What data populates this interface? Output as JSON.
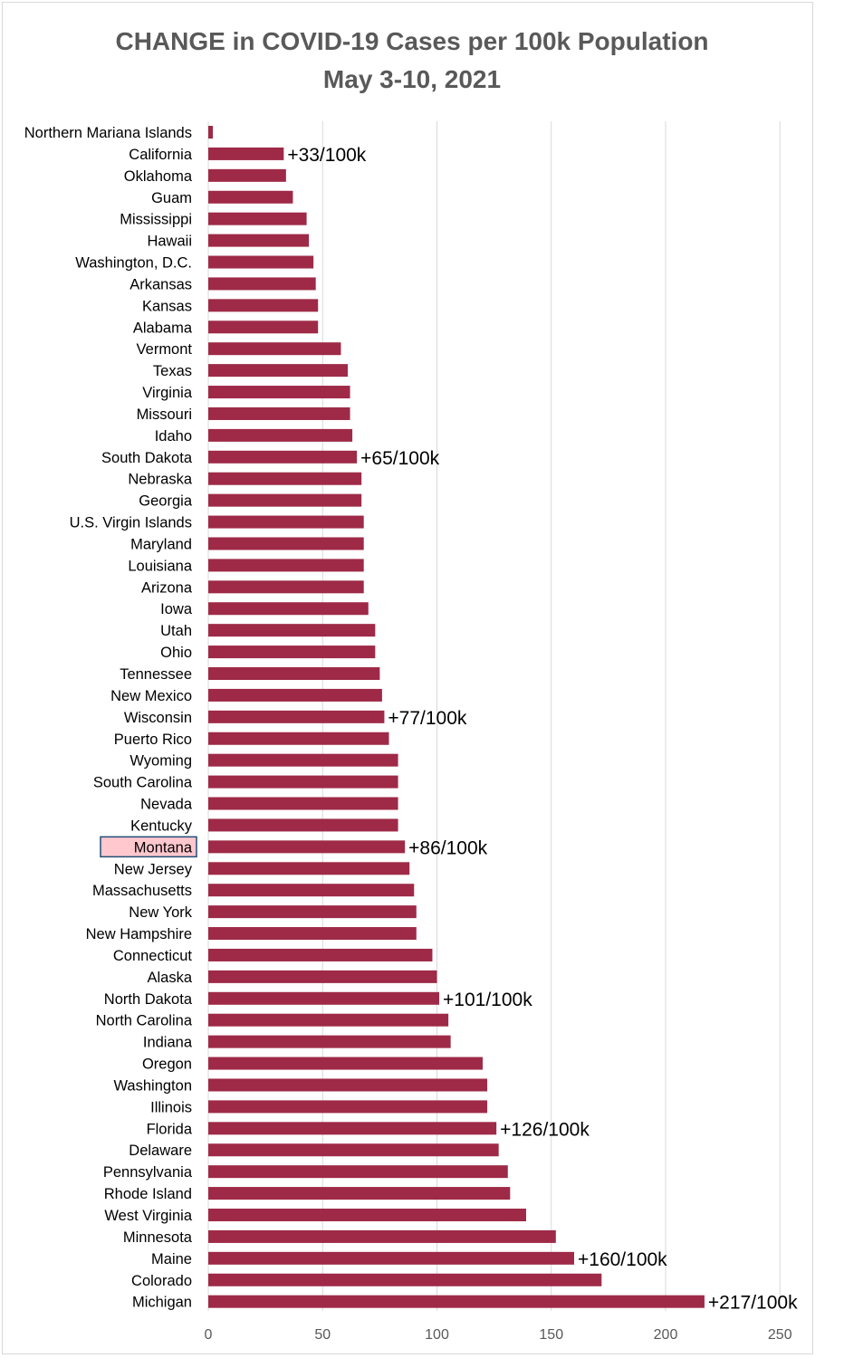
{
  "chart_data": {
    "type": "bar",
    "orientation": "horizontal",
    "title_lines": [
      "CHANGE in COVID-19 Cases per 100k Population",
      "May 3-10, 2021"
    ],
    "xlabel": "",
    "ylabel": "",
    "xlim": [
      0,
      250
    ],
    "x_ticks": [
      0,
      50,
      100,
      150,
      200,
      250
    ],
    "grid": "vertical gridlines",
    "legend": "none",
    "bar_color": "#9e2a47",
    "highlight_category": "Montana",
    "highlight_fill": "#ffc7ce",
    "highlight_border": "#1f4e79",
    "categories": [
      "Northern Mariana Islands",
      "California",
      "Oklahoma",
      "Guam",
      "Mississippi",
      "Hawaii",
      "Washington, D.C.",
      "Arkansas",
      "Kansas",
      "Alabama",
      "Vermont",
      "Texas",
      "Virginia",
      "Missouri",
      "Idaho",
      "South Dakota",
      "Nebraska",
      "Georgia",
      "U.S. Virgin Islands",
      "Maryland",
      "Louisiana",
      "Arizona",
      "Iowa",
      "Utah",
      "Ohio",
      "Tennessee",
      "New Mexico",
      "Wisconsin",
      "Puerto Rico",
      "Wyoming",
      "South Carolina",
      "Nevada",
      "Kentucky",
      "Montana",
      "New Jersey",
      "Massachusetts",
      "New York",
      "New Hampshire",
      "Connecticut",
      "Alaska",
      "North Dakota",
      "North Carolina",
      "Indiana",
      "Oregon",
      "Washington",
      "Illinois",
      "Florida",
      "Delaware",
      "Pennsylvania",
      "Rhode Island",
      "West Virginia",
      "Minnesota",
      "Maine",
      "Colorado",
      "Michigan"
    ],
    "values": [
      2,
      33,
      34,
      37,
      43,
      44,
      46,
      47,
      48,
      48,
      58,
      61,
      62,
      62,
      63,
      65,
      67,
      67,
      68,
      68,
      68,
      68,
      70,
      73,
      73,
      75,
      76,
      77,
      79,
      83,
      83,
      83,
      83,
      86,
      88,
      90,
      91,
      91,
      98,
      100,
      101,
      105,
      106,
      120,
      122,
      122,
      126,
      127,
      131,
      132,
      139,
      152,
      160,
      172,
      217
    ],
    "annotations": [
      {
        "category": "California",
        "text": "+33/100k"
      },
      {
        "category": "South Dakota",
        "text": "+65/100k"
      },
      {
        "category": "Wisconsin",
        "text": "+77/100k"
      },
      {
        "category": "Montana",
        "text": "+86/100k"
      },
      {
        "category": "North Dakota",
        "text": "+101/100k"
      },
      {
        "category": "Florida",
        "text": "+126/100k"
      },
      {
        "category": "Maine",
        "text": "+160/100k"
      },
      {
        "category": "Michigan",
        "text": "+217/100k"
      }
    ]
  }
}
